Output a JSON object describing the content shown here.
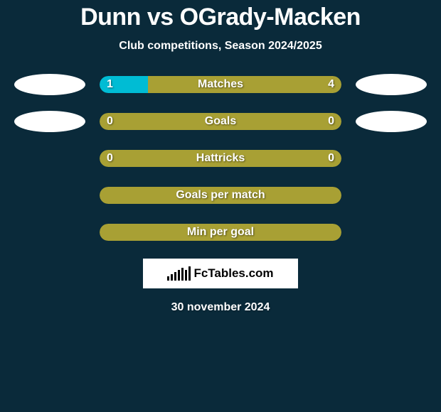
{
  "title": "Dunn vs OGrady-Macken",
  "subtitle": "Club competitions, Season 2024/2025",
  "colors": {
    "background": "#0a2a3a",
    "bar_left": "#00bcd4",
    "bar_right": "#a8a034",
    "text": "#ffffff",
    "avatar_bg": "#ffffff"
  },
  "stats": [
    {
      "label": "Matches",
      "left_value": "1",
      "right_value": "4",
      "left_pct": 20,
      "show_avatars": true
    },
    {
      "label": "Goals",
      "left_value": "0",
      "right_value": "0",
      "left_pct": 0,
      "show_avatars": true
    },
    {
      "label": "Hattricks",
      "left_value": "0",
      "right_value": "0",
      "left_pct": 0,
      "show_avatars": false
    },
    {
      "label": "Goals per match",
      "left_value": "",
      "right_value": "",
      "left_pct": 0,
      "show_avatars": false
    },
    {
      "label": "Min per goal",
      "left_value": "",
      "right_value": "",
      "left_pct": 0,
      "show_avatars": false
    }
  ],
  "logo": {
    "text": "FcTables.com",
    "bars": [
      6,
      9,
      12,
      15,
      18,
      15,
      20
    ]
  },
  "date": "30 november 2024"
}
